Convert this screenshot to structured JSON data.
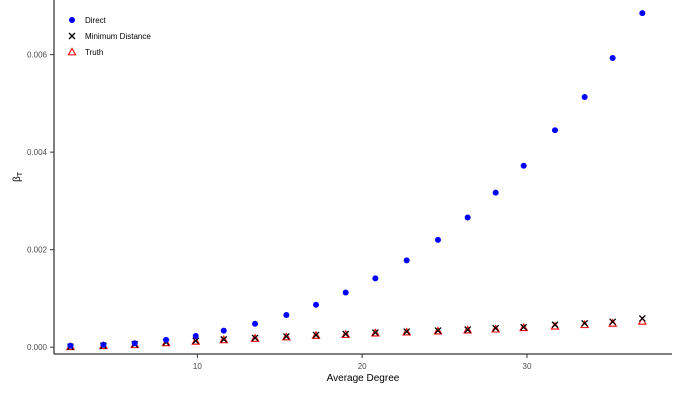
{
  "chart_data": {
    "type": "scatter",
    "title": "",
    "xlabel": "Average Degree",
    "ylabel_symbol": "β",
    "ylabel_subscript": "T",
    "xlim": [
      1.3,
      38.8
    ],
    "ylim": [
      -0.00014,
      0.00712
    ],
    "xticks": [
      {
        "value": 10,
        "label": "10"
      },
      {
        "value": 20,
        "label": "20"
      },
      {
        "value": 30,
        "label": "30"
      }
    ],
    "yticks": [
      {
        "value": 0.0,
        "label": "0.000"
      },
      {
        "value": 0.002,
        "label": "0.002"
      },
      {
        "value": 0.004,
        "label": "0.004"
      },
      {
        "value": 0.006,
        "label": "0.006"
      }
    ],
    "grid": false,
    "legend_position": "top-left",
    "series": [
      {
        "name": "Direct",
        "marker": "circle",
        "color": "#0000ff",
        "x": [
          2.3,
          4.3,
          6.2,
          8.1,
          9.9,
          11.6,
          13.5,
          15.4,
          17.2,
          19.0,
          20.8,
          22.7,
          24.6,
          26.4,
          28.1,
          29.8,
          31.7,
          33.5,
          35.2,
          37.0
        ],
        "y": [
          3e-05,
          5e-05,
          8e-05,
          0.00015,
          0.00023,
          0.00034,
          0.00048,
          0.00066,
          0.00087,
          0.00112,
          0.00141,
          0.00178,
          0.0022,
          0.00266,
          0.00317,
          0.00372,
          0.00445,
          0.00513,
          0.00593,
          0.00685
        ]
      },
      {
        "name": "Minimum Distance",
        "marker": "x",
        "color": "#000000",
        "x": [
          2.3,
          4.3,
          6.2,
          8.1,
          9.9,
          11.6,
          13.5,
          15.4,
          17.2,
          19.0,
          20.8,
          22.7,
          24.6,
          26.4,
          28.1,
          29.8,
          31.7,
          33.5,
          35.2,
          37.0
        ],
        "y": [
          1e-05,
          3e-05,
          6e-05,
          0.0001,
          0.00013,
          0.00016,
          0.00019,
          0.00022,
          0.00025,
          0.00027,
          0.0003,
          0.00032,
          0.00034,
          0.00036,
          0.00039,
          0.00041,
          0.00046,
          0.00049,
          0.00052,
          0.00059
        ]
      },
      {
        "name": "Truth",
        "marker": "triangle",
        "color": "#ff0000",
        "x": [
          2.3,
          4.3,
          6.2,
          8.1,
          9.9,
          11.6,
          13.5,
          15.4,
          17.2,
          19.0,
          20.8,
          22.7,
          24.6,
          26.4,
          28.1,
          29.8,
          31.7,
          33.5,
          35.2,
          37.0
        ],
        "y": [
          1e-05,
          3e-05,
          5e-05,
          9e-05,
          0.00012,
          0.00015,
          0.00018,
          0.00021,
          0.00024,
          0.00026,
          0.00029,
          0.00031,
          0.00033,
          0.00035,
          0.00037,
          0.0004,
          0.00043,
          0.00046,
          0.00049,
          0.00053
        ]
      }
    ]
  }
}
